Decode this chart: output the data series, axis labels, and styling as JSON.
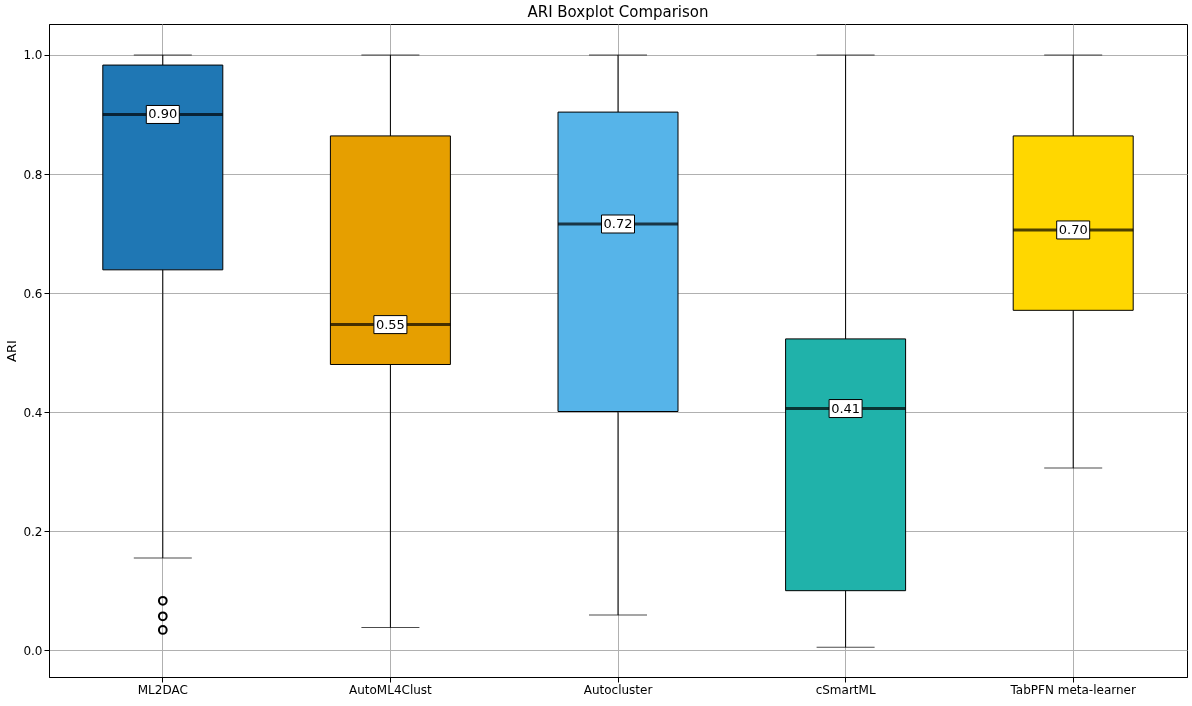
{
  "chart_data": {
    "type": "box",
    "title": "ARI Boxplot Comparison",
    "ylabel": "ARI",
    "categories": [
      "ML2DAC",
      "AutoML4Clust",
      "Autocluster",
      "cSmartML",
      "TabPFN meta-learner"
    ],
    "colors": [
      "#1f77b4",
      "#e69f00",
      "#56b4e9",
      "#20b2aa",
      "#ffd700"
    ],
    "boxes": [
      {
        "low": 0.155,
        "q1": 0.639,
        "median": 0.9,
        "q3": 0.983,
        "high": 1.0,
        "outliers": [
          0.083,
          0.057,
          0.034
        ]
      },
      {
        "low": 0.038,
        "q1": 0.48,
        "median": 0.547,
        "q3": 0.864,
        "high": 1.0
      },
      {
        "low": 0.059,
        "q1": 0.401,
        "median": 0.716,
        "q3": 0.904,
        "high": 1.0
      },
      {
        "low": 0.005,
        "q1": 0.1,
        "median": 0.406,
        "q3": 0.523,
        "high": 1.0
      },
      {
        "low": 0.306,
        "q1": 0.571,
        "median": 0.706,
        "q3": 0.864,
        "high": 1.0
      }
    ],
    "annotations": [
      {
        "text": "0.90",
        "x": "ML2DAC",
        "y": 0.9
      },
      {
        "text": "0.55",
        "x": "AutoML4Clust",
        "y": 0.547
      },
      {
        "text": "0.72",
        "x": "Autocluster",
        "y": 0.716
      },
      {
        "text": "0.41",
        "x": "cSmartML",
        "y": 0.406
      },
      {
        "text": "0.70",
        "x": "TabPFN meta-learner",
        "y": 0.706
      }
    ],
    "ylim": [
      -0.045,
      1.052
    ],
    "yticks": [
      {
        "value": 0,
        "label": "0.0"
      },
      0.2,
      0.4,
      0.6,
      0.8,
      {
        "value": 1,
        "label": "1.0"
      }
    ],
    "grid": true
  }
}
